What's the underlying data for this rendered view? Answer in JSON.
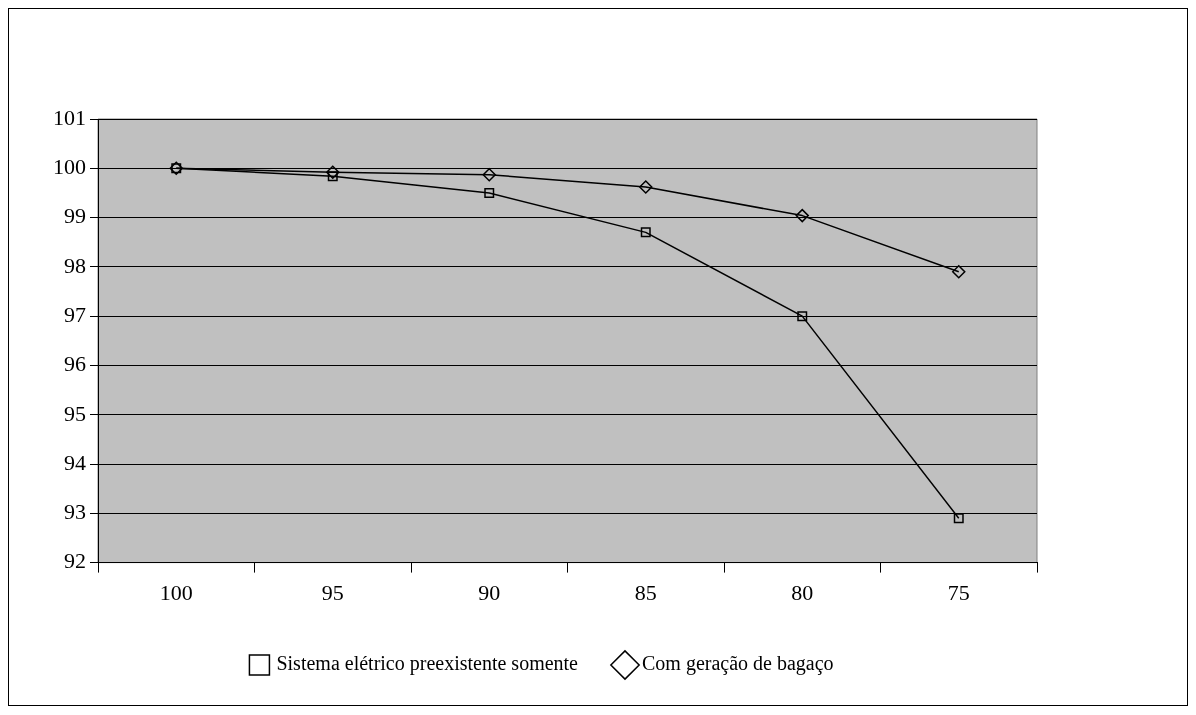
{
  "chart_data": {
    "type": "line",
    "categories": [
      "100",
      "95",
      "90",
      "85",
      "80",
      "75"
    ],
    "series": [
      {
        "name": "Sistema elétrico preexistente somente",
        "color": "#000000",
        "marker": "square",
        "values": [
          100,
          99.84,
          99.5,
          98.7,
          97.0,
          92.9
        ]
      },
      {
        "name": "Com geração de bagaço",
        "color": "#000000",
        "marker": "diamond",
        "values": [
          100,
          99.92,
          99.87,
          99.62,
          99.04,
          97.9
        ]
      }
    ],
    "ylim": [
      92,
      101
    ],
    "yticks": [
      92,
      93,
      94,
      95,
      96,
      97,
      98,
      99,
      100,
      101
    ],
    "grid": "y",
    "legend": "bottom",
    "line_style": "solid"
  }
}
